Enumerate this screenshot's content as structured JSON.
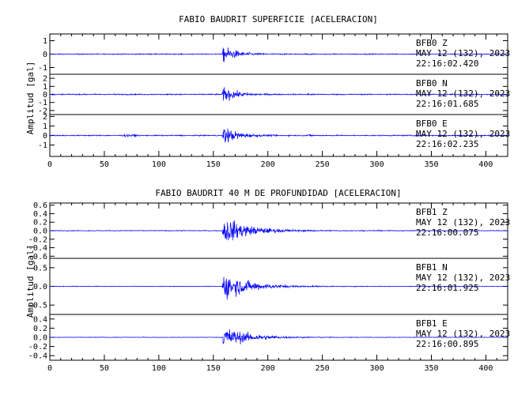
{
  "chart_data": [
    {
      "type": "line",
      "title": "FABIO BAUDRIT SUPERFICIE [ACELERACION]",
      "ylabel": "Amplitud [gal]",
      "xlabel": "",
      "xlim": [
        0,
        420
      ],
      "x_ticks": [
        "0",
        "50",
        "100",
        "150",
        "200",
        "250",
        "300",
        "350",
        "400"
      ],
      "line_color": "#0000ff",
      "event_onset_x": 160,
      "traces": [
        {
          "station": "BFB0",
          "component": "Z",
          "date": "MAY 12 (132), 2023",
          "time": "22:16:02.420",
          "ylim": [
            -1.5,
            1.5
          ],
          "y_ticks": [
            {
              "v": 1,
              "t": "1"
            },
            {
              "v": 0,
              "t": "0"
            },
            {
              "v": -1,
              "t": "-1"
            }
          ],
          "peak_amplitude": 1.2,
          "noise_level": 0.06
        },
        {
          "station": "BFB0",
          "component": "N",
          "date": "MAY 12 (132), 2023",
          "time": "22:16:01.685",
          "ylim": [
            -2.5,
            2.5
          ],
          "y_ticks": [
            {
              "v": 2,
              "t": "2"
            },
            {
              "v": 1,
              "t": "1"
            },
            {
              "v": 0,
              "t": "0"
            },
            {
              "v": -1,
              "t": "-1"
            },
            {
              "v": -2,
              "t": "-2"
            }
          ],
          "peak_amplitude": 1.8,
          "noise_level": 0.12
        },
        {
          "station": "BFB0",
          "component": "E",
          "date": "MAY 12 (132), 2023",
          "time": "22:16:02.235",
          "ylim": [
            -2.2,
            2.2
          ],
          "y_ticks": [
            {
              "v": 2,
              "t": "2"
            },
            {
              "v": 1,
              "t": "1"
            },
            {
              "v": 0,
              "t": "0"
            },
            {
              "v": -1,
              "t": "-1"
            }
          ],
          "peak_amplitude": 1.9,
          "noise_level": 0.1
        }
      ]
    },
    {
      "type": "line",
      "title": "FABIO BAUDRIT 40 M DE PROFUNDIDAD [ACELERACION]",
      "ylabel": "Amplitud [gal]",
      "xlabel": "",
      "xlim": [
        0,
        420
      ],
      "x_ticks": [
        "0",
        "50",
        "100",
        "150",
        "200",
        "250",
        "300",
        "350",
        "400"
      ],
      "line_color": "#0000ff",
      "event_onset_x": 160,
      "traces": [
        {
          "station": "BFB1",
          "component": "Z",
          "date": "MAY 12 (132), 2023",
          "time": "22:16:00.075",
          "ylim": [
            -0.65,
            0.65
          ],
          "y_ticks": [
            {
              "v": 0.6,
              "t": "0.6"
            },
            {
              "v": 0.4,
              "t": "0.4"
            },
            {
              "v": 0.2,
              "t": "0.2"
            },
            {
              "v": 0.0,
              "t": "0.0"
            },
            {
              "v": -0.2,
              "t": "-0.2"
            },
            {
              "v": -0.4,
              "t": "-0.4"
            },
            {
              "v": -0.6,
              "t": "-0.6"
            }
          ],
          "peak_amplitude": 0.6,
          "noise_level": 0.015
        },
        {
          "station": "BFB1",
          "component": "N",
          "date": "MAY 12 (132), 2023",
          "time": "22:16:01.925",
          "ylim": [
            -0.75,
            0.75
          ],
          "y_ticks": [
            {
              "v": 0.5,
              "t": "0.5"
            },
            {
              "v": 0.0,
              "t": "0.0"
            },
            {
              "v": -0.5,
              "t": "-0.5"
            }
          ],
          "peak_amplitude": 0.7,
          "noise_level": 0.015
        },
        {
          "station": "BFB1",
          "component": "E",
          "date": "MAY 12 (132), 2023",
          "time": "22:16:00.895",
          "ylim": [
            -0.5,
            0.5
          ],
          "y_ticks": [
            {
              "v": 0.4,
              "t": "0.4"
            },
            {
              "v": 0.2,
              "t": "0.2"
            },
            {
              "v": 0.0,
              "t": "0.0"
            },
            {
              "v": -0.2,
              "t": "-0.2"
            },
            {
              "v": -0.4,
              "t": "-0.4"
            }
          ],
          "peak_amplitude": 0.45,
          "noise_level": 0.01
        }
      ]
    }
  ]
}
